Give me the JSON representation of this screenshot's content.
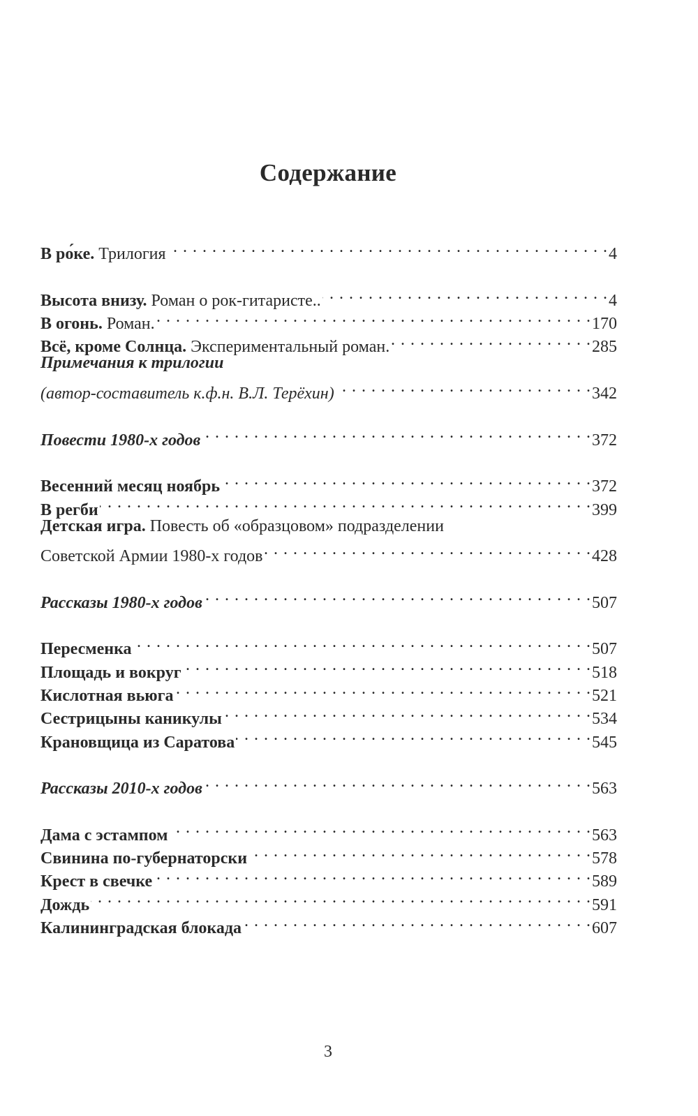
{
  "heading": "Содержание",
  "entries": [
    {
      "title": "В ро́ке.",
      "subtitle": " Трилогия",
      "page": "4"
    },
    {
      "title": "Высота внизу.",
      "subtitle": " Роман о рок-гитаристе..",
      "page": "4"
    },
    {
      "title": "В огонь.",
      "subtitle": " Роман.",
      "page": "170"
    },
    {
      "title": "Всё, кроме Солнца.",
      "subtitle": " Экспериментальный роман.",
      "page": "285"
    },
    {
      "title": "Примечания к трилогии"
    },
    {
      "title": "(автор-составитель к.ф.н. В.Л. Терёхин)",
      "page": "342"
    },
    {
      "title": "Повести 1980-х годов",
      "page": "372"
    },
    {
      "title": "Весенний месяц ноябрь",
      "page": "372"
    },
    {
      "title": "В регби",
      "page": "399"
    },
    {
      "title": "Детская игра.",
      "subtitle": " Повесть об «образцовом» подразделении"
    },
    {
      "title": "Советской Армии 1980-х годов",
      "page": "428"
    },
    {
      "title": "Рассказы 1980-х годов",
      "page": "507"
    },
    {
      "title": "Пересменка",
      "page": "507"
    },
    {
      "title": "Площадь и вокруг",
      "page": "518"
    },
    {
      "title": "Кислотная вьюга",
      "page": "521"
    },
    {
      "title": "Сестрицыны каникулы",
      "page": "534"
    },
    {
      "title": "Крановщица из Саратова",
      "page": "545"
    },
    {
      "title": "Рассказы 2010-х годов",
      "page": "563"
    },
    {
      "title": "Дама с эстампом",
      "page": "563"
    },
    {
      "title": "Свинина по-губернаторски",
      "page": "578"
    },
    {
      "title": "Крест в свечке",
      "page": "589"
    },
    {
      "title": "Дождь",
      "page": "591"
    },
    {
      "title": "Калининградская блокада",
      "page": "607"
    }
  ],
  "page_number": "3"
}
